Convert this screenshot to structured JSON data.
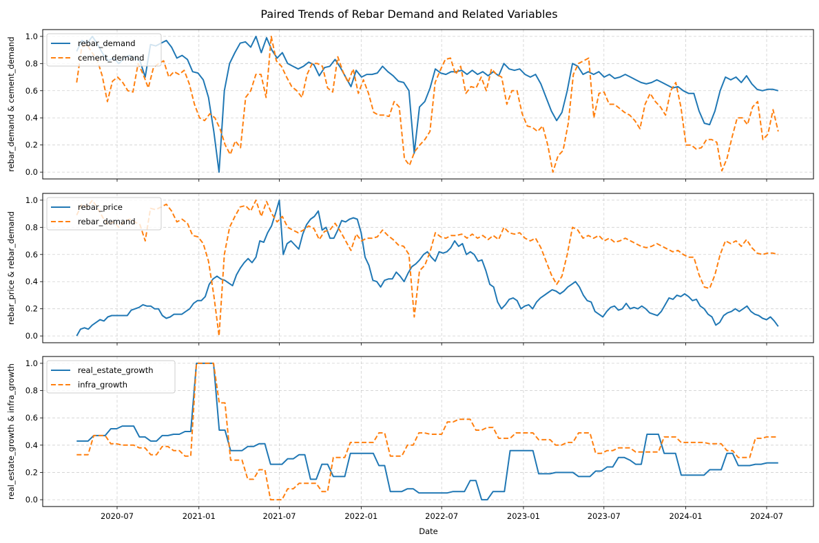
{
  "chart_data": [
    {
      "type": "line",
      "title": "Paired Trends of Rebar Demand and Related Variables",
      "xlabel": "",
      "ylabel": "rebar_demand & cement_demand",
      "ylim": [
        -0.05,
        1.05
      ],
      "yticks": [
        "0.0",
        "0.2",
        "0.4",
        "0.6",
        "0.8",
        "1.0"
      ],
      "xticks": [
        "2020-07",
        "2021-01",
        "2021-07",
        "2022-01",
        "2022-07",
        "2023-01",
        "2023-07",
        "2024-01",
        "2024-07"
      ],
      "grid": true,
      "legend_position": "upper-left",
      "series": [
        {
          "name": "rebar_demand",
          "color": "#1f77b4",
          "style": "solid",
          "values": [
            0.89,
            0.97,
            0.95,
            1.0,
            0.94,
            0.87,
            0.82,
            0.84,
            0.8,
            0.84,
            0.86,
            0.84,
            0.82,
            0.7,
            0.94,
            0.93,
            0.95,
            0.97,
            0.92,
            0.84,
            0.86,
            0.83,
            0.74,
            0.73,
            0.68,
            0.55,
            0.3,
            0.0,
            0.6,
            0.8,
            0.88,
            0.95,
            0.96,
            0.92,
            1.0,
            0.88,
            0.99,
            0.9,
            0.84,
            0.88,
            0.8,
            0.78,
            0.76,
            0.78,
            0.81,
            0.79,
            0.71,
            0.77,
            0.78,
            0.83,
            0.77,
            0.7,
            0.63,
            0.75,
            0.7,
            0.72,
            0.72,
            0.73,
            0.78,
            0.74,
            0.71,
            0.67,
            0.66,
            0.6,
            0.14,
            0.48,
            0.52,
            0.62,
            0.76,
            0.73,
            0.72,
            0.74,
            0.74,
            0.75,
            0.72,
            0.75,
            0.72,
            0.74,
            0.71,
            0.74,
            0.71,
            0.8,
            0.76,
            0.75,
            0.76,
            0.72,
            0.7,
            0.72,
            0.65,
            0.55,
            0.45,
            0.38,
            0.44,
            0.6,
            0.8,
            0.78,
            0.72,
            0.74,
            0.72,
            0.74,
            0.7,
            0.72,
            0.69,
            0.7,
            0.72,
            0.7,
            0.68,
            0.66,
            0.65,
            0.66,
            0.68,
            0.66,
            0.64,
            0.62,
            0.63,
            0.6,
            0.58,
            0.58,
            0.45,
            0.36,
            0.35,
            0.45,
            0.6,
            0.7,
            0.68,
            0.7,
            0.66,
            0.71,
            0.65,
            0.61,
            0.6,
            0.61,
            0.61,
            0.6
          ]
        },
        {
          "name": "cement_demand",
          "color": "#ff7f0e",
          "style": "dashed",
          "values": [
            0.66,
            0.92,
            0.94,
            0.88,
            0.83,
            0.71,
            0.52,
            0.67,
            0.7,
            0.66,
            0.6,
            0.59,
            0.8,
            0.72,
            0.62,
            0.77,
            0.8,
            0.82,
            0.7,
            0.74,
            0.72,
            0.75,
            0.65,
            0.5,
            0.4,
            0.38,
            0.43,
            0.4,
            0.32,
            0.2,
            0.13,
            0.23,
            0.18,
            0.55,
            0.6,
            0.72,
            0.72,
            0.55,
            1.0,
            0.82,
            0.78,
            0.7,
            0.63,
            0.6,
            0.55,
            0.72,
            0.8,
            0.8,
            0.78,
            0.62,
            0.59,
            0.85,
            0.74,
            0.66,
            0.76,
            0.58,
            0.68,
            0.58,
            0.44,
            0.42,
            0.42,
            0.41,
            0.52,
            0.48,
            0.1,
            0.05,
            0.15,
            0.2,
            0.24,
            0.3,
            0.66,
            0.75,
            0.83,
            0.84,
            0.72,
            0.78,
            0.58,
            0.63,
            0.62,
            0.7,
            0.6,
            0.76,
            0.72,
            0.7,
            0.5,
            0.6,
            0.6,
            0.43,
            0.34,
            0.33,
            0.3,
            0.34,
            0.2,
            0.0,
            0.12,
            0.16,
            0.36,
            0.72,
            0.8,
            0.82,
            0.84,
            0.4,
            0.58,
            0.59,
            0.5,
            0.5,
            0.47,
            0.44,
            0.42,
            0.38,
            0.32,
            0.5,
            0.58,
            0.52,
            0.48,
            0.42,
            0.6,
            0.66,
            0.48,
            0.2,
            0.2,
            0.17,
            0.18,
            0.24,
            0.24,
            0.22,
            0.01,
            0.1,
            0.26,
            0.4,
            0.4,
            0.35,
            0.48,
            0.52,
            0.24,
            0.28,
            0.46,
            0.3
          ]
        }
      ]
    },
    {
      "type": "line",
      "xlabel": "",
      "ylabel": "rebar_price & rebar_demand",
      "ylim": [
        -0.05,
        1.05
      ],
      "yticks": [
        "0.0",
        "0.2",
        "0.4",
        "0.6",
        "0.8",
        "1.0"
      ],
      "xticks": [
        "2020-07",
        "2021-01",
        "2021-07",
        "2022-01",
        "2022-07",
        "2023-01",
        "2023-07",
        "2024-01",
        "2024-07"
      ],
      "grid": true,
      "legend_position": "upper-left",
      "series": [
        {
          "name": "rebar_price",
          "color": "#1f77b4",
          "style": "solid",
          "values": [
            0.0,
            0.05,
            0.06,
            0.05,
            0.08,
            0.1,
            0.12,
            0.11,
            0.14,
            0.15,
            0.15,
            0.15,
            0.15,
            0.15,
            0.19,
            0.2,
            0.21,
            0.23,
            0.22,
            0.22,
            0.2,
            0.2,
            0.15,
            0.13,
            0.14,
            0.16,
            0.16,
            0.16,
            0.18,
            0.2,
            0.24,
            0.26,
            0.26,
            0.29,
            0.38,
            0.42,
            0.44,
            0.42,
            0.41,
            0.39,
            0.37,
            0.45,
            0.5,
            0.54,
            0.57,
            0.54,
            0.58,
            0.7,
            0.69,
            0.76,
            0.81,
            0.9,
            1.0,
            0.6,
            0.68,
            0.7,
            0.67,
            0.64,
            0.75,
            0.82,
            0.86,
            0.88,
            0.92,
            0.78,
            0.8,
            0.72,
            0.72,
            0.78,
            0.85,
            0.84,
            0.86,
            0.87,
            0.86,
            0.76,
            0.58,
            0.52,
            0.41,
            0.4,
            0.36,
            0.41,
            0.42,
            0.42,
            0.47,
            0.44,
            0.4,
            0.46,
            0.51,
            0.53,
            0.56,
            0.6,
            0.62,
            0.58,
            0.55,
            0.62,
            0.61,
            0.62,
            0.65,
            0.7,
            0.66,
            0.68,
            0.6,
            0.62,
            0.6,
            0.55,
            0.56,
            0.48,
            0.38,
            0.36,
            0.25,
            0.2,
            0.23,
            0.27,
            0.28,
            0.26,
            0.2,
            0.22,
            0.23,
            0.2,
            0.25,
            0.28,
            0.3,
            0.32,
            0.34,
            0.33,
            0.31,
            0.33,
            0.36,
            0.38,
            0.4,
            0.36,
            0.3,
            0.26,
            0.25,
            0.18,
            0.16,
            0.14,
            0.18,
            0.21,
            0.22,
            0.19,
            0.2,
            0.24,
            0.2,
            0.21,
            0.2,
            0.22,
            0.2,
            0.17,
            0.16,
            0.15,
            0.18,
            0.23,
            0.28,
            0.27,
            0.3,
            0.29,
            0.31,
            0.29,
            0.26,
            0.27,
            0.22,
            0.2,
            0.16,
            0.14,
            0.08,
            0.1,
            0.15,
            0.17,
            0.18,
            0.2,
            0.18,
            0.2,
            0.22,
            0.18,
            0.16,
            0.15,
            0.13,
            0.12,
            0.14,
            0.11,
            0.07
          ]
        },
        {
          "name": "rebar_demand",
          "color": "#ff7f0e",
          "style": "dashed",
          "values": [
            0.89,
            0.97,
            0.95,
            1.0,
            0.94,
            0.87,
            0.82,
            0.84,
            0.8,
            0.84,
            0.86,
            0.84,
            0.82,
            0.7,
            0.94,
            0.93,
            0.95,
            0.97,
            0.92,
            0.84,
            0.86,
            0.83,
            0.74,
            0.73,
            0.68,
            0.55,
            0.3,
            0.0,
            0.6,
            0.8,
            0.88,
            0.95,
            0.96,
            0.92,
            1.0,
            0.88,
            0.99,
            0.9,
            0.84,
            0.88,
            0.8,
            0.78,
            0.76,
            0.78,
            0.81,
            0.79,
            0.71,
            0.77,
            0.78,
            0.83,
            0.77,
            0.7,
            0.63,
            0.75,
            0.7,
            0.72,
            0.72,
            0.73,
            0.78,
            0.74,
            0.71,
            0.67,
            0.66,
            0.6,
            0.14,
            0.48,
            0.52,
            0.62,
            0.76,
            0.73,
            0.72,
            0.74,
            0.74,
            0.75,
            0.72,
            0.75,
            0.72,
            0.74,
            0.71,
            0.74,
            0.71,
            0.8,
            0.76,
            0.75,
            0.76,
            0.72,
            0.7,
            0.72,
            0.65,
            0.55,
            0.45,
            0.38,
            0.44,
            0.6,
            0.8,
            0.78,
            0.72,
            0.74,
            0.72,
            0.74,
            0.7,
            0.72,
            0.69,
            0.7,
            0.72,
            0.7,
            0.68,
            0.66,
            0.65,
            0.66,
            0.68,
            0.66,
            0.64,
            0.62,
            0.63,
            0.6,
            0.58,
            0.58,
            0.45,
            0.36,
            0.35,
            0.45,
            0.6,
            0.7,
            0.68,
            0.7,
            0.66,
            0.71,
            0.65,
            0.61,
            0.6,
            0.61,
            0.61,
            0.6
          ]
        }
      ]
    },
    {
      "type": "line",
      "xlabel": "Date",
      "ylabel": "real_estate_growth & infra_growth",
      "ylim": [
        -0.05,
        1.05
      ],
      "yticks": [
        "0.0",
        "0.2",
        "0.4",
        "0.6",
        "0.8",
        "1.0"
      ],
      "xticks": [
        "2020-07",
        "2021-01",
        "2021-07",
        "2022-01",
        "2022-07",
        "2023-01",
        "2023-07",
        "2024-01",
        "2024-07"
      ],
      "grid": true,
      "legend_position": "upper-left",
      "series": [
        {
          "name": "real_estate_growth",
          "color": "#1f77b4",
          "style": "solid",
          "values": [
            0.43,
            0.43,
            0.43,
            0.47,
            0.47,
            0.47,
            0.52,
            0.52,
            0.54,
            0.54,
            0.54,
            0.46,
            0.46,
            0.43,
            0.43,
            0.47,
            0.47,
            0.48,
            0.48,
            0.5,
            0.5,
            1.0,
            1.0,
            1.0,
            1.0,
            0.51,
            0.51,
            0.36,
            0.36,
            0.36,
            0.39,
            0.39,
            0.41,
            0.41,
            0.26,
            0.26,
            0.26,
            0.3,
            0.3,
            0.33,
            0.33,
            0.15,
            0.15,
            0.26,
            0.26,
            0.17,
            0.17,
            0.17,
            0.34,
            0.34,
            0.34,
            0.34,
            0.34,
            0.25,
            0.25,
            0.06,
            0.06,
            0.06,
            0.08,
            0.08,
            0.05,
            0.05,
            0.05,
            0.05,
            0.05,
            0.05,
            0.06,
            0.06,
            0.06,
            0.14,
            0.14,
            0.0,
            0.0,
            0.06,
            0.06,
            0.06,
            0.36,
            0.36,
            0.36,
            0.36,
            0.36,
            0.19,
            0.19,
            0.19,
            0.2,
            0.2,
            0.2,
            0.2,
            0.17,
            0.17,
            0.17,
            0.21,
            0.21,
            0.24,
            0.24,
            0.31,
            0.31,
            0.29,
            0.26,
            0.26,
            0.48,
            0.48,
            0.48,
            0.34,
            0.34,
            0.34,
            0.18,
            0.18,
            0.18,
            0.18,
            0.18,
            0.22,
            0.22,
            0.22,
            0.34,
            0.34,
            0.25,
            0.25,
            0.25,
            0.26,
            0.26,
            0.27,
            0.27,
            0.27
          ]
        },
        {
          "name": "infra_growth",
          "color": "#ff7f0e",
          "style": "dashed",
          "values": [
            0.33,
            0.33,
            0.33,
            0.47,
            0.47,
            0.47,
            0.41,
            0.41,
            0.4,
            0.4,
            0.4,
            0.38,
            0.38,
            0.33,
            0.33,
            0.39,
            0.39,
            0.36,
            0.36,
            0.32,
            0.32,
            1.0,
            1.0,
            1.0,
            1.0,
            0.71,
            0.71,
            0.29,
            0.29,
            0.29,
            0.15,
            0.15,
            0.22,
            0.22,
            0.0,
            0.0,
            0.0,
            0.08,
            0.08,
            0.12,
            0.12,
            0.12,
            0.12,
            0.06,
            0.06,
            0.31,
            0.31,
            0.31,
            0.42,
            0.42,
            0.42,
            0.42,
            0.42,
            0.49,
            0.49,
            0.32,
            0.32,
            0.32,
            0.4,
            0.4,
            0.49,
            0.49,
            0.48,
            0.48,
            0.48,
            0.57,
            0.57,
            0.59,
            0.59,
            0.59,
            0.51,
            0.51,
            0.53,
            0.53,
            0.45,
            0.45,
            0.45,
            0.49,
            0.49,
            0.49,
            0.49,
            0.44,
            0.44,
            0.44,
            0.4,
            0.4,
            0.42,
            0.42,
            0.49,
            0.49,
            0.49,
            0.34,
            0.34,
            0.36,
            0.36,
            0.38,
            0.38,
            0.38,
            0.35,
            0.35,
            0.35,
            0.35,
            0.35,
            0.46,
            0.46,
            0.46,
            0.42,
            0.42,
            0.42,
            0.42,
            0.42,
            0.41,
            0.41,
            0.41,
            0.36,
            0.36,
            0.31,
            0.31,
            0.31,
            0.45,
            0.45,
            0.46,
            0.46,
            0.46
          ]
        }
      ]
    }
  ],
  "figure": {
    "title": "Paired Trends of Rebar Demand and Related Variables",
    "xlabel": "Date",
    "x_start": "2020-04-01",
    "x_end": "2024-07-27"
  }
}
